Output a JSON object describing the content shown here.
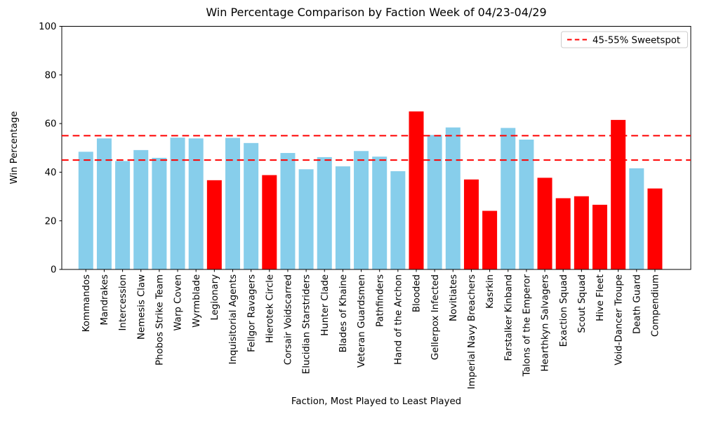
{
  "chart_data": {
    "type": "bar",
    "title": "Win Percentage Comparison by Faction Week of 04/23-04/29",
    "xlabel": "Faction, Most Played to Least Played",
    "ylabel": "Win Percentage",
    "ylim": [
      0,
      100
    ],
    "yticks": [
      0,
      20,
      40,
      60,
      80,
      100
    ],
    "grid": false,
    "legend_position": "upper right",
    "legend_label": "45-55% Sweetspot",
    "reference_lines": [
      {
        "y": 45,
        "color": "#FF0000",
        "style": "dashed"
      },
      {
        "y": 55,
        "color": "#FF0000",
        "style": "dashed"
      }
    ],
    "bar_color_default": "#87CEEB",
    "bar_color_outlier": "#FF0000",
    "categories": [
      "Kommandos",
      "Mandrakes",
      "Intercession",
      "Nemesis Claw",
      "Phobos Strike Team",
      "Warp Coven",
      "Wyrmblade",
      "Legionary",
      "Inquisitorial Agents",
      "Fellgor Ravagers",
      "Hierotek Circle",
      "Corsair Voidscarred",
      "Elucidian Starstriders",
      "Hunter Clade",
      "Blades of Khaine",
      "Veteran Guardsmen",
      "Pathfinders",
      "Hand of the Archon",
      "Blooded",
      "Gellerpox Infected",
      "Novitiates",
      "Imperial Navy Breachers",
      "Kasrkin",
      "Farstalker Kinband",
      "Talons of the Emperor",
      "Hearthkyn Salvagers",
      "Exaction Squad",
      "Scout Squad",
      "Hive Fleet",
      "Void-Dancer Troupe",
      "Death Guard",
      "Compendium"
    ],
    "values": [
      48.4,
      53.9,
      44.6,
      49.1,
      45.9,
      54.2,
      53.9,
      36.7,
      54.1,
      52.0,
      38.8,
      47.9,
      41.2,
      46.2,
      42.4,
      48.7,
      46.4,
      40.4,
      65.0,
      55.3,
      58.4,
      37.0,
      24.1,
      58.2,
      53.4,
      37.7,
      29.3,
      30.1,
      26.6,
      61.5,
      41.6,
      33.3
    ],
    "colors": [
      "#87CEEB",
      "#87CEEB",
      "#87CEEB",
      "#87CEEB",
      "#87CEEB",
      "#87CEEB",
      "#87CEEB",
      "#FF0000",
      "#87CEEB",
      "#87CEEB",
      "#FF0000",
      "#87CEEB",
      "#87CEEB",
      "#87CEEB",
      "#87CEEB",
      "#87CEEB",
      "#87CEEB",
      "#87CEEB",
      "#FF0000",
      "#87CEEB",
      "#87CEEB",
      "#FF0000",
      "#FF0000",
      "#87CEEB",
      "#87CEEB",
      "#FF0000",
      "#FF0000",
      "#FF0000",
      "#FF0000",
      "#FF0000",
      "#87CEEB",
      "#FF0000"
    ]
  }
}
